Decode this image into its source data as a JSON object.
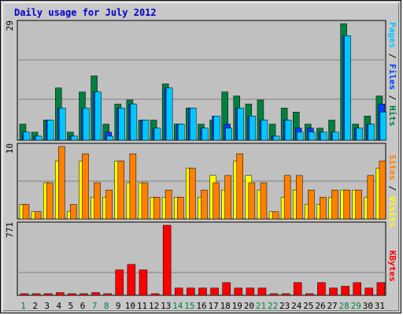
{
  "title": "Daily usage for July 2012",
  "colors": {
    "hits": "#008040",
    "files": "#0040ff",
    "pages": "#00c8ff",
    "visits": "#ffff00",
    "sites": "#ff8000",
    "kbytes": "#ff0000",
    "weekday": "#000000",
    "weekend": "#008040"
  },
  "chart_data": [
    {
      "type": "bar",
      "ylim": [
        0,
        29
      ],
      "ytick": "29",
      "categories": [
        "1",
        "2",
        "3",
        "4",
        "5",
        "6",
        "7",
        "8",
        "9",
        "10",
        "11",
        "12",
        "13",
        "14",
        "15",
        "16",
        "17",
        "18",
        "19",
        "20",
        "21",
        "22",
        "23",
        "24",
        "25",
        "26",
        "27",
        "28",
        "29",
        "30",
        "31"
      ],
      "series": [
        {
          "name": "Hits",
          "values": [
            4,
            2,
            5,
            13,
            2,
            12,
            16,
            4,
            9,
            10,
            5,
            5,
            14,
            4,
            8,
            4,
            5,
            12,
            11,
            9,
            10,
            4,
            8,
            7,
            4,
            3,
            5,
            29,
            4,
            6,
            11
          ]
        },
        {
          "name": "Files",
          "values": [
            2,
            1,
            5,
            8,
            1,
            8,
            12,
            2,
            8,
            9,
            5,
            3,
            13,
            4,
            8,
            3,
            6,
            4,
            8,
            6,
            5,
            1,
            5,
            3,
            3,
            2,
            2,
            26,
            3,
            4,
            9
          ]
        },
        {
          "name": "Pages",
          "values": [
            2,
            1,
            5,
            8,
            1,
            8,
            12,
            1,
            8,
            9,
            5,
            3,
            13,
            4,
            8,
            3,
            6,
            3,
            8,
            6,
            5,
            1,
            5,
            2,
            2,
            2,
            2,
            26,
            3,
            4,
            7
          ]
        }
      ],
      "labels": {
        "pages": "Pages",
        "files": "Files",
        "hits": "Hits"
      }
    },
    {
      "type": "bar",
      "ylim": [
        0,
        10
      ],
      "ytick": "10",
      "categories": [
        "1",
        "2",
        "3",
        "4",
        "5",
        "6",
        "7",
        "8",
        "9",
        "10",
        "11",
        "12",
        "13",
        "14",
        "15",
        "16",
        "17",
        "18",
        "19",
        "20",
        "21",
        "22",
        "23",
        "24",
        "25",
        "26",
        "27",
        "28",
        "29",
        "30",
        "31"
      ],
      "series": [
        {
          "name": "Visits",
          "values": [
            2,
            1,
            5,
            8,
            1,
            8,
            3,
            3,
            8,
            5,
            5,
            3,
            3,
            3,
            7,
            3,
            6,
            4,
            8,
            6,
            4,
            1,
            3,
            4,
            2,
            2,
            3,
            4,
            4,
            3,
            7
          ]
        },
        {
          "name": "Sites",
          "values": [
            2,
            1,
            5,
            10,
            2,
            9,
            5,
            4,
            8,
            9,
            5,
            3,
            4,
            3,
            7,
            4,
            5,
            6,
            9,
            5,
            5,
            1,
            6,
            6,
            4,
            3,
            4,
            4,
            4,
            6,
            8
          ]
        }
      ],
      "labels": {
        "sites": "Sites",
        "visits": "Visits"
      }
    },
    {
      "type": "bar",
      "ylim": [
        0,
        771
      ],
      "ytick": "771",
      "categories": [
        "1",
        "2",
        "3",
        "4",
        "5",
        "6",
        "7",
        "8",
        "9",
        "10",
        "11",
        "12",
        "13",
        "14",
        "15",
        "16",
        "17",
        "18",
        "19",
        "20",
        "21",
        "22",
        "23",
        "24",
        "25",
        "26",
        "27",
        "28",
        "29",
        "30",
        "31"
      ],
      "series": [
        {
          "name": "KBytes",
          "values": [
            18,
            18,
            18,
            30,
            18,
            18,
            30,
            18,
            280,
            340,
            280,
            18,
            771,
            80,
            80,
            80,
            80,
            140,
            80,
            80,
            80,
            18,
            18,
            140,
            18,
            140,
            80,
            100,
            140,
            80,
            140
          ]
        }
      ],
      "labels": {
        "kbytes": "KBytes"
      }
    }
  ],
  "weekend_days": [
    "1",
    "7",
    "8",
    "14",
    "15",
    "21",
    "22",
    "28",
    "29"
  ]
}
